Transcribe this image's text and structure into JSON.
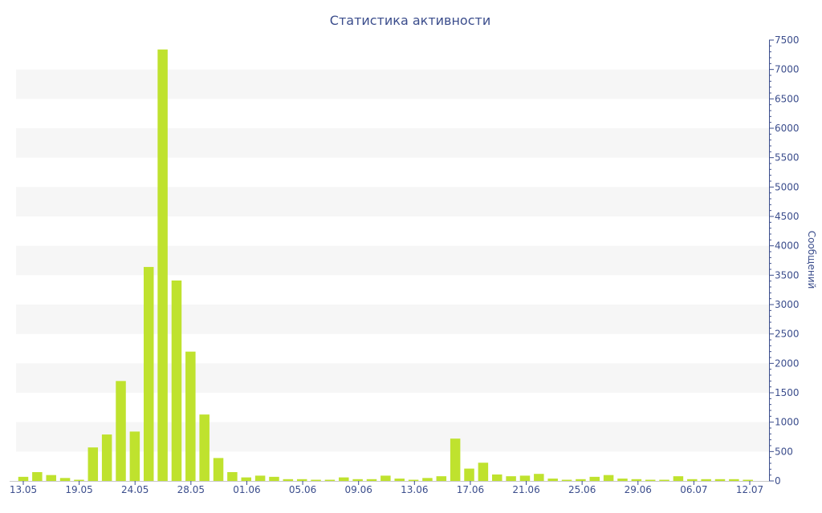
{
  "chart_data": {
    "type": "bar",
    "title": "Статистика активности",
    "xlabel": "",
    "ylabel": "Сообщений",
    "y_axis_side": "right",
    "ylim": [
      0,
      7500
    ],
    "y_ticks": [
      0,
      500,
      1000,
      1500,
      2000,
      2500,
      3000,
      3500,
      4000,
      4500,
      5000,
      5500,
      6000,
      6500,
      7000,
      7500
    ],
    "x_tick_labels": [
      "13.05",
      "19.05",
      "24.05",
      "28.05",
      "01.06",
      "05.06",
      "09.06",
      "13.06",
      "17.06",
      "21.06",
      "25.06",
      "29.06",
      "06.07",
      "12.07"
    ],
    "grid": "alternating horizontal bands",
    "bar_color": "#bfe22e",
    "band_color": "#f6f6f6",
    "text_color": "#3b4d8c",
    "values": [
      70,
      150,
      100,
      50,
      20,
      570,
      790,
      1700,
      840,
      3640,
      7340,
      3410,
      2200,
      1130,
      390,
      150,
      60,
      90,
      70,
      30,
      30,
      20,
      20,
      60,
      30,
      30,
      90,
      40,
      20,
      50,
      80,
      720,
      210,
      310,
      110,
      80,
      90,
      120,
      40,
      20,
      30,
      70,
      100,
      40,
      30,
      20,
      20,
      80,
      30,
      30,
      30,
      30,
      20
    ]
  }
}
